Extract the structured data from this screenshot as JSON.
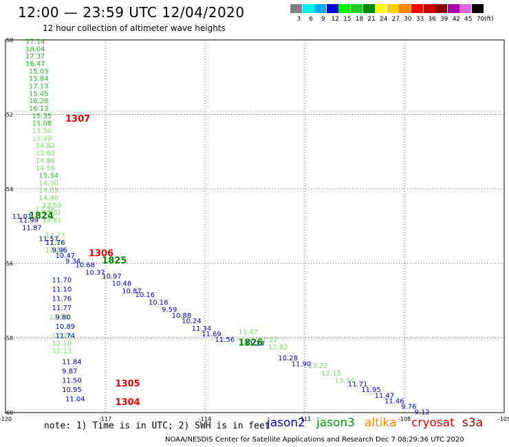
{
  "header": {
    "title": "12:00 — 23:59 UTC 12/04/2020",
    "subtitle": "12 hour collection of altimeter wave heights"
  },
  "color_scale": {
    "unit": "(ft)",
    "bins": [
      {
        "label": "3",
        "color": "#808080"
      },
      {
        "label": "6",
        "color": "#00eeee"
      },
      {
        "label": "9",
        "color": "#00aaff"
      },
      {
        "label": "12",
        "color": "#0000dd"
      },
      {
        "label": "15",
        "color": "#00ee00"
      },
      {
        "label": "18",
        "color": "#22cc22"
      },
      {
        "label": "21",
        "color": "#008800"
      },
      {
        "label": "24",
        "color": "#ffff00"
      },
      {
        "label": "27",
        "color": "#ffcc00"
      },
      {
        "label": "30",
        "color": "#ff8800"
      },
      {
        "label": "33",
        "color": "#ff0000"
      },
      {
        "label": "36",
        "color": "#cc0000"
      },
      {
        "label": "39",
        "color": "#880000"
      },
      {
        "label": "42",
        "color": "#aa00aa"
      },
      {
        "label": "45",
        "color": "#dd66dd"
      },
      {
        "label": "70",
        "color": "#000000"
      }
    ]
  },
  "note": "note: 1) Time is in UTC; 2) SWH is in feet",
  "satellites": [
    {
      "name": "jason2",
      "color": "#0000cc"
    },
    {
      "name": "jason3",
      "color": "#009900"
    },
    {
      "name": "altika",
      "color": "#ff8800"
    },
    {
      "name": "cryosat",
      "color": "#ee0000"
    },
    {
      "name": "s3a",
      "color": "#880000"
    }
  ],
  "credit": "NOAA/NESDIS Center for Satellite Applications and Research   Dec  7 08:29:36 UTC 2020",
  "chart_data": {
    "type": "scatter",
    "title": "12:00 — 23:59 UTC 12/04/2020",
    "subtitle": "12 hour collection of altimeter wave heights",
    "xlabel": "",
    "ylabel": "",
    "xlim": [
      -120,
      -105
    ],
    "ylim": [
      -60,
      -50
    ],
    "x_ticks": [
      "-120",
      "-117",
      "-114",
      "-111",
      "-108",
      "-105"
    ],
    "y_ticks": [
      "-50",
      "-52",
      "-54",
      "-56",
      "-58",
      "-60"
    ],
    "grid": true,
    "time_labels": [
      {
        "text": "1307",
        "lon": -118.2,
        "lat": -52.2,
        "color": "#ee0000"
      },
      {
        "text": "1824",
        "lon": -119.3,
        "lat": -54.8,
        "color": "#008800"
      },
      {
        "text": "1306",
        "lon": -117.5,
        "lat": -55.8,
        "color": "#ee0000"
      },
      {
        "text": "1825",
        "lon": -117.1,
        "lat": -56.0,
        "color": "#008800"
      },
      {
        "text": "1826",
        "lon": -113.0,
        "lat": -58.2,
        "color": "#008800"
      },
      {
        "text": "1305",
        "lon": -116.7,
        "lat": -59.3,
        "color": "#ee0000"
      },
      {
        "text": "1304",
        "lon": -116.7,
        "lat": -59.8,
        "color": "#ee0000"
      }
    ],
    "series": [
      {
        "name": "jason3",
        "points": [
          {
            "lon": -119.4,
            "lat": -50.1,
            "swh": "17.14",
            "color": "#22bb22"
          },
          {
            "lon": -119.4,
            "lat": -50.3,
            "swh": "18.04",
            "color": "#22bb22"
          },
          {
            "lon": -119.4,
            "lat": -50.5,
            "swh": "17.37",
            "color": "#22bb22"
          },
          {
            "lon": -119.4,
            "lat": -50.7,
            "swh": "16.47",
            "color": "#22bb22"
          },
          {
            "lon": -119.3,
            "lat": -50.9,
            "swh": "15.03",
            "color": "#22bb22"
          },
          {
            "lon": -119.3,
            "lat": -51.1,
            "swh": "15.84",
            "color": "#22bb22"
          },
          {
            "lon": -119.3,
            "lat": -51.3,
            "swh": "17.13",
            "color": "#22bb22"
          },
          {
            "lon": -119.3,
            "lat": -51.5,
            "swh": "15.45",
            "color": "#22bb22"
          },
          {
            "lon": -119.3,
            "lat": -51.7,
            "swh": "16.28",
            "color": "#22bb22"
          },
          {
            "lon": -119.3,
            "lat": -51.9,
            "swh": "16.13",
            "color": "#22bb22"
          },
          {
            "lon": -119.2,
            "lat": -52.1,
            "swh": "15.35",
            "color": "#22bb22"
          },
          {
            "lon": -119.2,
            "lat": -52.3,
            "swh": "15.08",
            "color": "#22bb22"
          },
          {
            "lon": -119.2,
            "lat": -52.5,
            "swh": "13.50",
            "color": "#77dd66"
          },
          {
            "lon": -119.2,
            "lat": -52.7,
            "swh": "13.49",
            "color": "#77dd66"
          },
          {
            "lon": -119.1,
            "lat": -52.9,
            "swh": "14.82",
            "color": "#77dd66"
          },
          {
            "lon": -119.1,
            "lat": -53.1,
            "swh": "13.62",
            "color": "#77dd66"
          },
          {
            "lon": -119.1,
            "lat": -53.3,
            "swh": "14.86",
            "color": "#77dd66"
          },
          {
            "lon": -119.1,
            "lat": -53.5,
            "swh": "14.56",
            "color": "#77dd66"
          },
          {
            "lon": -119.0,
            "lat": -53.7,
            "swh": "15.34",
            "color": "#22bb22"
          },
          {
            "lon": -119.0,
            "lat": -53.9,
            "swh": "14.30",
            "color": "#77dd66"
          },
          {
            "lon": -119.0,
            "lat": -54.1,
            "swh": "14.03",
            "color": "#77dd66"
          },
          {
            "lon": -119.0,
            "lat": -54.3,
            "swh": "14.40",
            "color": "#77dd66"
          },
          {
            "lon": -118.9,
            "lat": -54.5,
            "swh": "13.59",
            "color": "#77dd66"
          },
          {
            "lon": -118.9,
            "lat": -54.7,
            "swh": "13.01",
            "color": "#77dd66"
          },
          {
            "lon": -118.9,
            "lat": -54.9,
            "swh": "13.81",
            "color": "#77dd66"
          },
          {
            "lon": -118.8,
            "lat": -55.3,
            "swh": "12.77",
            "color": "#77dd66"
          },
          {
            "lon": -118.8,
            "lat": -55.5,
            "swh": "12.85",
            "color": "#77dd66"
          },
          {
            "lon": -118.8,
            "lat": -55.7,
            "swh": "12.07",
            "color": "#77dd66"
          },
          {
            "lon": -118.7,
            "lat": -57.5,
            "swh": "12.90",
            "color": "#77dd66"
          },
          {
            "lon": -118.6,
            "lat": -58.0,
            "swh": "12.28",
            "color": "#77dd66"
          },
          {
            "lon": -118.6,
            "lat": -58.2,
            "swh": "12.18",
            "color": "#77dd66"
          },
          {
            "lon": -118.6,
            "lat": -58.4,
            "swh": "12.13",
            "color": "#77dd66"
          },
          {
            "lon": -119.1,
            "lat": -54.6,
            "swh": "12.36",
            "color": "#77dd66"
          },
          {
            "lon": -113.0,
            "lat": -57.9,
            "swh": "11.47",
            "color": "#77dd66"
          },
          {
            "lon": -112.4,
            "lat": -58.1,
            "swh": "12.22",
            "color": "#77dd66"
          },
          {
            "lon": -112.1,
            "lat": -58.3,
            "swh": "12.82",
            "color": "#77dd66"
          },
          {
            "lon": -110.9,
            "lat": -58.8,
            "swh": "13.22",
            "color": "#77dd66"
          },
          {
            "lon": -110.5,
            "lat": -59.0,
            "swh": "12.15",
            "color": "#77dd66"
          },
          {
            "lon": -110.1,
            "lat": -59.2,
            "swh": "13.34",
            "color": "#77dd66"
          }
        ]
      },
      {
        "name": "jason2",
        "points": [
          {
            "lon": -119.8,
            "lat": -54.8,
            "swh": "11.01",
            "color": "#0000cc"
          },
          {
            "lon": -119.6,
            "lat": -54.9,
            "swh": "11.99",
            "color": "#0000cc"
          },
          {
            "lon": -119.5,
            "lat": -55.1,
            "swh": "11.87",
            "color": "#0000cc"
          },
          {
            "lon": -119.0,
            "lat": -55.4,
            "swh": "11.57",
            "color": "#0000cc"
          },
          {
            "lon": -118.8,
            "lat": -55.5,
            "swh": "11.76",
            "color": "#0000cc"
          },
          {
            "lon": -118.6,
            "lat": -55.7,
            "swh": "9.96",
            "color": "#0000cc"
          },
          {
            "lon": -118.5,
            "lat": -55.85,
            "swh": "10.47",
            "color": "#0000cc"
          },
          {
            "lon": -118.2,
            "lat": -56.0,
            "swh": "9.34",
            "color": "#0000cc"
          },
          {
            "lon": -117.9,
            "lat": -56.1,
            "swh": "10.68",
            "color": "#0000cc"
          },
          {
            "lon": -117.6,
            "lat": -56.3,
            "swh": "10.37",
            "color": "#0000cc"
          },
          {
            "lon": -117.1,
            "lat": -56.4,
            "swh": "10.97",
            "color": "#0000cc"
          },
          {
            "lon": -116.8,
            "lat": -56.6,
            "swh": "10.48",
            "color": "#0000cc"
          },
          {
            "lon": -116.5,
            "lat": -56.8,
            "swh": "10.87",
            "color": "#0000cc"
          },
          {
            "lon": -116.1,
            "lat": -56.9,
            "swh": "10.16",
            "color": "#0000cc"
          },
          {
            "lon": -115.7,
            "lat": -57.1,
            "swh": "10.16",
            "color": "#0000cc"
          },
          {
            "lon": -115.3,
            "lat": -57.3,
            "swh": "9.59",
            "color": "#0000cc"
          },
          {
            "lon": -115.0,
            "lat": -57.45,
            "swh": "10.88",
            "color": "#0000cc"
          },
          {
            "lon": -114.7,
            "lat": -57.6,
            "swh": "10.24",
            "color": "#0000cc"
          },
          {
            "lon": -114.4,
            "lat": -57.8,
            "swh": "11.34",
            "color": "#0000cc"
          },
          {
            "lon": -114.1,
            "lat": -57.95,
            "swh": "11.69",
            "color": "#0000cc"
          },
          {
            "lon": -113.7,
            "lat": -58.1,
            "swh": "11.56",
            "color": "#0000cc"
          },
          {
            "lon": -112.8,
            "lat": -58.2,
            "swh": "11.20",
            "color": "#0000cc"
          },
          {
            "lon": -111.8,
            "lat": -58.6,
            "swh": "10.28",
            "color": "#0000cc"
          },
          {
            "lon": -111.4,
            "lat": -58.75,
            "swh": "11.90",
            "color": "#0000cc"
          },
          {
            "lon": -109.7,
            "lat": -59.3,
            "swh": "11.71",
            "color": "#0000cc"
          },
          {
            "lon": -109.3,
            "lat": -59.45,
            "swh": "11.95",
            "color": "#0000cc"
          },
          {
            "lon": -108.9,
            "lat": -59.6,
            "swh": "11.47",
            "color": "#0000cc"
          },
          {
            "lon": -108.6,
            "lat": -59.75,
            "swh": "11.46",
            "color": "#0000cc"
          },
          {
            "lon": -108.1,
            "lat": -59.9,
            "swh": "9.76",
            "color": "#0000cc"
          },
          {
            "lon": -107.7,
            "lat": -60.05,
            "swh": "9.12",
            "color": "#0000cc"
          },
          {
            "lon": -118.6,
            "lat": -56.5,
            "swh": "11.70",
            "color": "#0000cc"
          },
          {
            "lon": -118.6,
            "lat": -56.75,
            "swh": "11.10",
            "color": "#0000cc"
          },
          {
            "lon": -118.6,
            "lat": -57.0,
            "swh": "11.76",
            "color": "#0000cc"
          },
          {
            "lon": -118.6,
            "lat": -57.25,
            "swh": "11.77",
            "color": "#0000cc"
          },
          {
            "lon": -118.5,
            "lat": -57.5,
            "swh": "9.80",
            "color": "#0000cc"
          },
          {
            "lon": -118.5,
            "lat": -57.75,
            "swh": "10.89",
            "color": "#0000cc"
          },
          {
            "lon": -118.5,
            "lat": -58.0,
            "swh": "11.74",
            "color": "#0000cc"
          },
          {
            "lon": -118.3,
            "lat": -58.7,
            "swh": "11.84",
            "color": "#0000cc"
          },
          {
            "lon": -118.3,
            "lat": -58.95,
            "swh": "9.87",
            "color": "#0000cc"
          },
          {
            "lon": -118.3,
            "lat": -59.2,
            "swh": "11.50",
            "color": "#0000cc"
          },
          {
            "lon": -118.3,
            "lat": -59.45,
            "swh": "10.95",
            "color": "#0000cc"
          },
          {
            "lon": -118.2,
            "lat": -59.7,
            "swh": "11.04",
            "color": "#0000cc"
          }
        ]
      }
    ]
  }
}
